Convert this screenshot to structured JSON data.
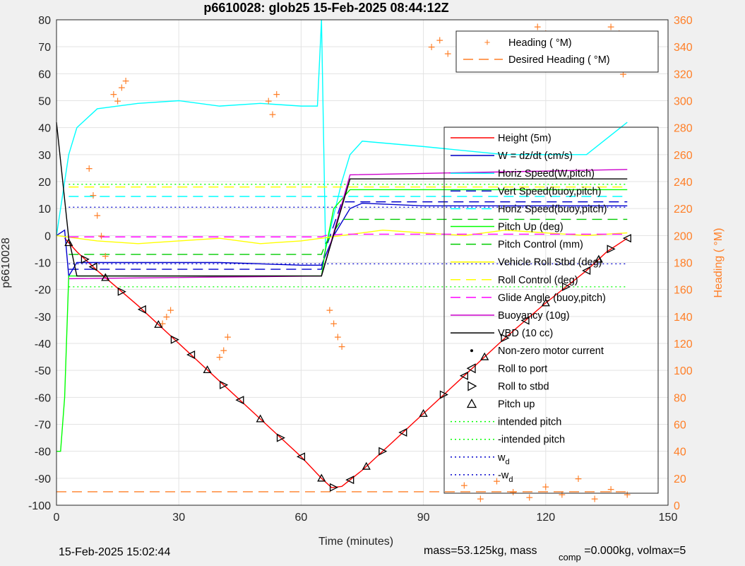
{
  "chart_data": {
    "type": "line",
    "title": "p6610028: glob25 15-Feb-2025 08:44:12Z",
    "xlabel": "Time (minutes)",
    "ylabel_left": "p6610028",
    "ylabel_right": "Heading ( °M)",
    "xlim": [
      0,
      150
    ],
    "ylim_left": [
      -100,
      80
    ],
    "ylim_right": [
      0,
      360
    ],
    "x_ticks": [
      0,
      30,
      60,
      90,
      120,
      150
    ],
    "y_ticks_left": [
      80,
      70,
      60,
      50,
      40,
      30,
      20,
      10,
      0,
      -10,
      -20,
      -30,
      -40,
      -50,
      -60,
      -70,
      -80,
      -90,
      -100
    ],
    "y_ticks_right": [
      360,
      340,
      320,
      300,
      280,
      260,
      240,
      220,
      200,
      180,
      160,
      140,
      120,
      100,
      80,
      60,
      40,
      20,
      0
    ],
    "grid": true,
    "legend_top": {
      "placement": "top-right",
      "entries": [
        {
          "label": "Heading ( °M)",
          "color": "#ff7f27",
          "style": "plus"
        },
        {
          "label": "Desired Heading ( °M)",
          "color": "#ff7f27",
          "style": "dashed"
        }
      ]
    },
    "legend_main": {
      "placement": "right",
      "entries": [
        {
          "label": "Height (5m)",
          "color": "#ff0000",
          "style": "solid"
        },
        {
          "label": "W = dz/dt (cm/s)",
          "color": "#0000cc",
          "style": "solid"
        },
        {
          "label": "Horiz Speed(W,pitch)",
          "color": "#00ffff",
          "style": "solid"
        },
        {
          "label": "Vert Speed(buoy,pitch)",
          "color": "#0000cc",
          "style": "dashed"
        },
        {
          "label": "Horiz Speed(buoy,pitch)",
          "color": "#00ffff",
          "style": "dashed"
        },
        {
          "label": "Pitch Up (deg)",
          "color": "#00ff00",
          "style": "solid"
        },
        {
          "label": "Pitch Control (mm)",
          "color": "#00cc00",
          "style": "dashed"
        },
        {
          "label": "Vehicle Roll Stbd (deg)",
          "color": "#ffff00",
          "style": "solid"
        },
        {
          "label": "Roll Control (deg)",
          "color": "#ffff00",
          "style": "dashed"
        },
        {
          "label": "Glide Angle (buoy,pitch)",
          "color": "#ff00ff",
          "style": "dashed"
        },
        {
          "label": "Buoyancy (10g)",
          "color": "#cc00cc",
          "style": "solid"
        },
        {
          "label": "VBD (10 cc)",
          "color": "#000000",
          "style": "solid"
        },
        {
          "label": "Non-zero motor current",
          "color": "#000000",
          "style": "dot"
        },
        {
          "label": "Roll to port",
          "color": "#000000",
          "style": "tri-left"
        },
        {
          "label": "Roll to stbd",
          "color": "#000000",
          "style": "tri-right"
        },
        {
          "label": "Pitch up",
          "color": "#000000",
          "style": "tri-up"
        },
        {
          "label": "intended pitch",
          "color": "#00ff00",
          "style": "dotted"
        },
        {
          "label": "-intended pitch",
          "color": "#00ff00",
          "style": "dotted"
        },
        {
          "label": "w",
          "sub": "d",
          "color": "#0000cc",
          "style": "dotted"
        },
        {
          "label": "-w",
          "sub": "d",
          "color": "#0000cc",
          "style": "dotted"
        }
      ]
    },
    "series": [
      {
        "name": "Height (5m)",
        "color": "#ff0000",
        "x": [
          2,
          5,
          10,
          20,
          30,
          40,
          50,
          60,
          65,
          67.5,
          70,
          75,
          80,
          90,
          100,
          110,
          120,
          130,
          135,
          140
        ],
        "y": [
          -1,
          -6,
          -13,
          -26,
          -40,
          -54,
          -68,
          -82,
          -90,
          -93.5,
          -93,
          -87,
          -80,
          -66,
          -52,
          -38,
          -25,
          -13,
          -6,
          -1
        ]
      },
      {
        "name": "W = dz/dt (cm/s)",
        "color": "#0000cc",
        "x": [
          0,
          2,
          3,
          5,
          20,
          40,
          60,
          65,
          68,
          72,
          75,
          90,
          110,
          130,
          140
        ],
        "y": [
          0,
          2,
          -15,
          -10,
          -10,
          -10,
          -11,
          -11,
          0,
          10,
          12,
          11,
          11,
          11,
          11
        ]
      },
      {
        "name": "Horiz Speed(W,pitch)",
        "color": "#00ffff",
        "x": [
          0,
          3,
          5,
          10,
          20,
          30,
          40,
          50,
          60,
          64,
          65,
          66,
          70,
          72,
          75,
          90,
          110,
          130,
          140
        ],
        "y": [
          0,
          30,
          40,
          47,
          49,
          50,
          48,
          49,
          48,
          48,
          80,
          -5,
          20,
          30,
          35,
          33,
          30,
          30,
          42
        ]
      },
      {
        "name": "Vert Speed(buoy,pitch)",
        "color": "#0000cc",
        "x": [
          3,
          65,
          66,
          70,
          140
        ],
        "y": [
          -12.5,
          -12.5,
          -5,
          12.5,
          12.5
        ]
      },
      {
        "name": "Horiz Speed(buoy,pitch)",
        "color": "#00ffff",
        "x": [
          3,
          65,
          66,
          70,
          140
        ],
        "y": [
          14.5,
          14.5,
          14.5,
          14.5,
          14.5
        ]
      },
      {
        "name": "Pitch Up (deg)",
        "color": "#00ff00",
        "x": [
          0,
          1,
          2,
          3,
          60,
          65,
          66,
          68,
          72,
          140
        ],
        "y": [
          -80,
          -80,
          -60,
          -15,
          -15,
          -15,
          -5,
          10,
          17,
          17
        ]
      },
      {
        "name": "Pitch Control (mm)",
        "color": "#00cc00",
        "x": [
          3,
          65,
          66,
          70,
          140
        ],
        "y": [
          -7,
          -7,
          -3,
          6,
          6
        ]
      },
      {
        "name": "Vehicle Roll Stbd (deg)",
        "color": "#ffff00",
        "x": [
          0,
          10,
          20,
          30,
          40,
          50,
          60,
          70,
          80,
          90,
          100,
          110,
          120,
          130,
          140
        ],
        "y": [
          0,
          -2,
          -3,
          -2,
          -1,
          -3,
          -2,
          0,
          2,
          1,
          0,
          2,
          1,
          0,
          1
        ]
      },
      {
        "name": "Roll Control (deg)",
        "color": "#ffff00",
        "x": [
          3,
          140
        ],
        "y": [
          18,
          18
        ]
      },
      {
        "name": "Glide Angle (buoy,pitch)",
        "color": "#ff00ff",
        "x": [
          3,
          65,
          66,
          70,
          140
        ],
        "y": [
          -0.5,
          -0.5,
          0,
          0.5,
          0.5
        ]
      },
      {
        "name": "Buoyancy (10g)",
        "color": "#cc00cc",
        "x": [
          3,
          65,
          72,
          140
        ],
        "y": [
          -16,
          -15,
          22.5,
          24.5
        ]
      },
      {
        "name": "VBD (10 cc)",
        "color": "#000000",
        "x": [
          0,
          3,
          5,
          65,
          72,
          140
        ],
        "y": [
          42,
          -1,
          -15,
          -15,
          21,
          21
        ]
      }
    ],
    "reference_lines": [
      {
        "name": "intended pitch",
        "y": 19
      },
      {
        "name": "-intended pitch",
        "y": -19
      },
      {
        "name": "w_d",
        "y": 10.5
      },
      {
        "name": "-w_d",
        "y": -10.5
      }
    ],
    "desired_heading_deg": 10,
    "heading_clusters_deg": [
      {
        "x": [
          8,
          9,
          10,
          11,
          12
        ],
        "y": [
          250,
          230,
          215,
          200,
          185
        ]
      },
      {
        "x": [
          14,
          15,
          16,
          17
        ],
        "y": [
          305,
          300,
          310,
          315
        ]
      },
      {
        "x": [
          26,
          27,
          28
        ],
        "y": [
          135,
          140,
          145
        ]
      },
      {
        "x": [
          40,
          41,
          42
        ],
        "y": [
          110,
          115,
          125
        ]
      },
      {
        "x": [
          52,
          53,
          54
        ],
        "y": [
          300,
          290,
          305
        ]
      },
      {
        "x": [
          67,
          68,
          69,
          70
        ],
        "y": [
          145,
          135,
          125,
          118
        ]
      },
      {
        "x": [
          92,
          94,
          96
        ],
        "y": [
          340,
          345,
          335
        ]
      },
      {
        "x": [
          118,
          120,
          122,
          124,
          126
        ],
        "y": [
          355,
          350,
          345,
          340,
          330
        ]
      },
      {
        "x": [
          136,
          137,
          138,
          139
        ],
        "y": [
          355,
          345,
          350,
          320
        ]
      },
      {
        "x": [
          100,
          104,
          108,
          112,
          116,
          120,
          124,
          128,
          132,
          136,
          140
        ],
        "y": [
          15,
          5,
          18,
          10,
          6,
          14,
          8,
          20,
          5,
          12,
          8
        ]
      }
    ],
    "pitch_markers_x": [
      3,
      7,
      9,
      12,
      16,
      21,
      25,
      29,
      33,
      37,
      41,
      45,
      50,
      55,
      60,
      65,
      68,
      72,
      76,
      80,
      85,
      90,
      95,
      100,
      105,
      110,
      115,
      120,
      125,
      130,
      133,
      136,
      140
    ]
  },
  "footer": {
    "timestamp": "15-Feb-2025 15:02:44",
    "mass_text": "mass=53.125kg, mass",
    "comp_sub": "comp",
    "comp_text": "=0.000kg, volmax=5"
  }
}
